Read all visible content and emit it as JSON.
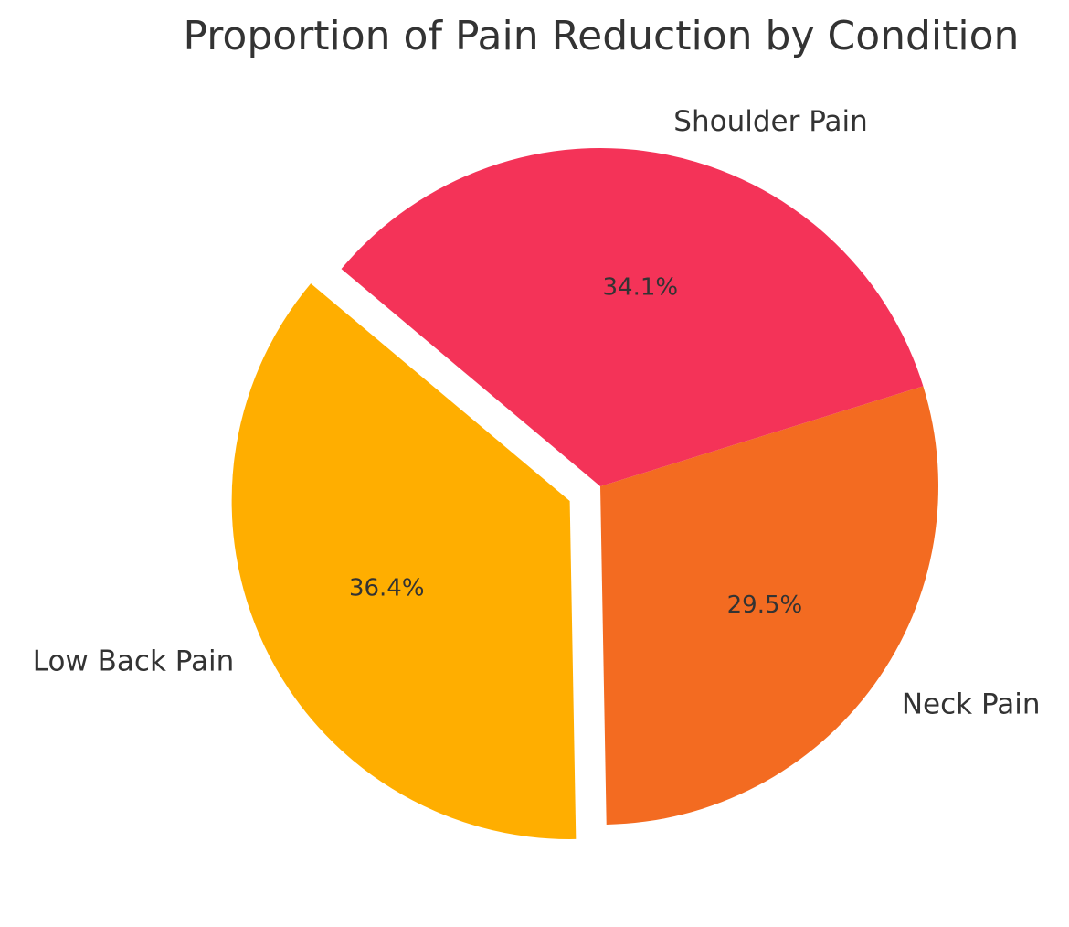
{
  "chart_data": {
    "type": "pie",
    "title": "Proportion of Pain Reduction by Condition",
    "start_angle_deg": 140,
    "direction": "counterclockwise",
    "exploded": [
      "Low Back Pain"
    ],
    "slices": [
      {
        "label": "Low Back Pain",
        "value": 36.4,
        "pct_label": "36.4%",
        "color": "#FFAE00"
      },
      {
        "label": "Neck Pain",
        "value": 29.5,
        "pct_label": "29.5%",
        "color": "#F36B21"
      },
      {
        "label": "Shoulder Pain",
        "value": 34.1,
        "pct_label": "34.1%",
        "color": "#F43358"
      }
    ]
  }
}
